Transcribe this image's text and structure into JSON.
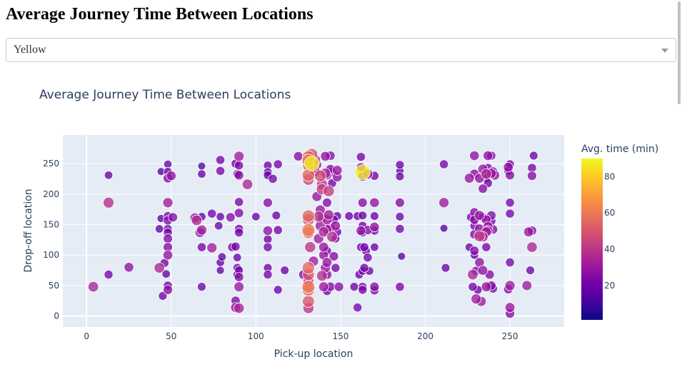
{
  "page": {
    "heading": "Average Journey Time Between Locations"
  },
  "dropdown": {
    "selected": "Yellow"
  },
  "chart_data": {
    "type": "scatter",
    "title": "Average Journey Time Between Locations",
    "xlabel": "Pick-up location",
    "ylabel": "Drop-off location",
    "xlim": [
      -14,
      282
    ],
    "ylim": [
      -18,
      297
    ],
    "xticks": [
      0,
      50,
      100,
      150,
      200,
      250
    ],
    "yticks": [
      0,
      50,
      100,
      150,
      200,
      250
    ],
    "colorbar": {
      "title": "Avg. time (min)",
      "range": [
        1,
        90
      ],
      "ticks": [
        20,
        40,
        60,
        80
      ]
    },
    "colorscale": [
      "#0d0887",
      "#46039f",
      "#7201a8",
      "#9c179e",
      "#bd3786",
      "#d8576b",
      "#ed7953",
      "#fb9f3a",
      "#fdca26",
      "#f0f921"
    ],
    "grid": true,
    "background": "#e5ecf6",
    "points": [
      [
        4,
        48,
        35
      ],
      [
        13,
        186,
        38
      ],
      [
        13,
        231,
        18
      ],
      [
        13,
        68,
        22
      ],
      [
        25,
        80,
        28
      ],
      [
        43,
        79,
        35
      ],
      [
        43,
        143,
        18
      ],
      [
        44,
        160,
        16
      ],
      [
        44,
        237,
        15
      ],
      [
        45,
        33,
        20
      ],
      [
        46,
        87,
        22
      ],
      [
        47,
        69,
        18
      ],
      [
        48,
        249,
        17
      ],
      [
        48,
        237,
        18
      ],
      [
        48,
        226,
        25
      ],
      [
        48,
        186,
        32
      ],
      [
        48,
        164,
        22
      ],
      [
        48,
        157,
        25
      ],
      [
        48,
        143,
        20
      ],
      [
        48,
        137,
        22
      ],
      [
        48,
        127,
        25
      ],
      [
        48,
        113,
        25
      ],
      [
        48,
        100,
        28
      ],
      [
        48,
        50,
        22
      ],
      [
        48,
        43,
        26
      ],
      [
        50,
        230,
        28
      ],
      [
        51,
        162,
        25
      ],
      [
        64,
        161,
        30
      ],
      [
        65,
        157,
        36
      ],
      [
        67,
        137,
        30
      ],
      [
        68,
        141,
        32
      ],
      [
        68,
        113,
        22
      ],
      [
        68,
        163,
        18
      ],
      [
        68,
        246,
        15
      ],
      [
        68,
        233,
        18
      ],
      [
        68,
        48,
        20
      ],
      [
        74,
        168,
        22
      ],
      [
        74,
        112,
        32
      ],
      [
        78,
        148,
        18
      ],
      [
        79,
        163,
        18
      ],
      [
        79,
        238,
        22
      ],
      [
        79,
        256,
        22
      ],
      [
        79,
        75,
        16
      ],
      [
        79,
        88,
        18
      ],
      [
        80,
        97,
        18
      ],
      [
        85,
        162,
        25
      ],
      [
        86,
        113,
        22
      ],
      [
        88,
        250,
        22
      ],
      [
        88,
        114,
        22
      ],
      [
        88,
        25,
        24
      ],
      [
        88,
        14,
        30
      ],
      [
        89,
        79,
        20
      ],
      [
        89,
        68,
        20
      ],
      [
        89,
        233,
        20
      ],
      [
        89,
        96,
        18
      ],
      [
        90,
        262,
        32
      ],
      [
        90,
        247,
        22
      ],
      [
        90,
        231,
        26
      ],
      [
        90,
        187,
        22
      ],
      [
        90,
        169,
        25
      ],
      [
        90,
        143,
        22
      ],
      [
        90,
        137,
        22
      ],
      [
        90,
        75,
        20
      ],
      [
        90,
        64,
        25
      ],
      [
        90,
        48,
        30
      ],
      [
        90,
        13,
        34
      ],
      [
        95,
        216,
        35
      ],
      [
        100,
        163,
        18
      ],
      [
        107,
        247,
        20
      ],
      [
        107,
        236,
        20
      ],
      [
        107,
        231,
        20
      ],
      [
        107,
        186,
        25
      ],
      [
        107,
        140,
        28
      ],
      [
        107,
        126,
        20
      ],
      [
        107,
        113,
        22
      ],
      [
        107,
        79,
        20
      ],
      [
        107,
        68,
        22
      ],
      [
        110,
        225,
        22
      ],
      [
        112,
        165,
        20
      ],
      [
        113,
        249,
        22
      ],
      [
        113,
        141,
        22
      ],
      [
        113,
        43,
        20
      ],
      [
        117,
        75,
        20
      ],
      [
        125,
        262,
        25
      ],
      [
        128,
        68,
        25
      ],
      [
        131,
        261,
        55
      ],
      [
        131,
        255,
        60
      ],
      [
        131,
        247,
        42
      ],
      [
        131,
        231,
        55
      ],
      [
        131,
        224,
        45
      ],
      [
        131,
        164,
        55
      ],
      [
        131,
        158,
        48
      ],
      [
        131,
        141,
        62
      ],
      [
        131,
        137,
        50
      ],
      [
        131,
        79,
        55
      ],
      [
        131,
        68,
        48
      ],
      [
        131,
        57,
        38
      ],
      [
        131,
        48,
        60
      ],
      [
        131,
        43,
        55
      ],
      [
        131,
        24,
        50
      ],
      [
        131,
        13,
        40
      ],
      [
        132,
        113,
        40
      ],
      [
        133,
        265,
        50
      ],
      [
        133,
        250,
        88
      ],
      [
        133,
        262,
        28
      ],
      [
        134,
        90,
        32
      ],
      [
        135,
        256,
        35
      ],
      [
        135,
        237,
        32
      ],
      [
        136,
        248,
        25
      ],
      [
        136,
        196,
        30
      ],
      [
        137,
        127,
        32
      ],
      [
        137,
        163,
        38
      ],
      [
        138,
        174,
        30
      ],
      [
        138,
        148,
        32
      ],
      [
        138,
        230,
        48
      ],
      [
        139,
        161,
        28
      ],
      [
        139,
        216,
        40
      ],
      [
        139,
        208,
        42
      ],
      [
        139,
        66,
        38
      ],
      [
        140,
        113,
        30
      ],
      [
        140,
        138,
        35
      ],
      [
        140,
        100,
        28
      ],
      [
        140,
        48,
        30
      ],
      [
        141,
        234,
        35
      ],
      [
        141,
        262,
        28
      ],
      [
        141,
        79,
        30
      ],
      [
        142,
        231,
        25
      ],
      [
        142,
        186,
        25
      ],
      [
        142,
        158,
        32
      ],
      [
        142,
        142,
        30
      ],
      [
        142,
        107,
        20
      ],
      [
        142,
        68,
        28
      ],
      [
        142,
        41,
        22
      ],
      [
        142,
        88,
        30
      ],
      [
        143,
        166,
        32
      ],
      [
        143,
        205,
        42
      ],
      [
        144,
        241,
        25
      ],
      [
        144,
        263,
        25
      ],
      [
        144,
        144,
        25
      ],
      [
        144,
        48,
        25
      ],
      [
        145,
        236,
        22
      ],
      [
        145,
        218,
        22
      ],
      [
        145,
        130,
        38
      ],
      [
        146,
        158,
        22
      ],
      [
        146,
        98,
        25
      ],
      [
        147,
        148,
        30
      ],
      [
        147,
        127,
        20
      ],
      [
        147,
        79,
        22
      ],
      [
        148,
        228,
        28
      ],
      [
        148,
        239,
        30
      ],
      [
        148,
        164,
        20
      ],
      [
        148,
        138,
        22
      ],
      [
        149,
        48,
        26
      ],
      [
        155,
        164,
        20
      ],
      [
        158,
        48,
        20
      ],
      [
        160,
        164,
        20
      ],
      [
        160,
        14,
        22
      ],
      [
        161,
        68,
        20
      ],
      [
        162,
        140,
        28
      ],
      [
        162,
        113,
        20
      ],
      [
        162,
        244,
        22
      ],
      [
        162,
        261,
        22
      ],
      [
        163,
        236,
        88
      ],
      [
        163,
        229,
        25
      ],
      [
        163,
        186,
        25
      ],
      [
        163,
        165,
        20
      ],
      [
        163,
        148,
        22
      ],
      [
        163,
        137,
        20
      ],
      [
        163,
        74,
        20
      ],
      [
        163,
        48,
        22
      ],
      [
        163,
        43,
        22
      ],
      [
        164,
        79,
        22
      ],
      [
        164,
        113,
        22
      ],
      [
        165,
        107,
        20
      ],
      [
        166,
        233,
        32
      ],
      [
        166,
        141,
        25
      ],
      [
        166,
        96,
        22
      ],
      [
        167,
        74,
        20
      ],
      [
        170,
        230,
        22
      ],
      [
        170,
        186,
        28
      ],
      [
        170,
        164,
        20
      ],
      [
        170,
        146,
        28
      ],
      [
        170,
        140,
        22
      ],
      [
        170,
        48,
        26
      ],
      [
        170,
        42,
        22
      ],
      [
        170,
        113,
        18
      ],
      [
        185,
        248,
        20
      ],
      [
        185,
        238,
        16
      ],
      [
        185,
        229,
        20
      ],
      [
        185,
        186,
        25
      ],
      [
        185,
        163,
        20
      ],
      [
        185,
        143,
        22
      ],
      [
        185,
        48,
        22
      ],
      [
        186,
        98,
        15
      ],
      [
        211,
        249,
        22
      ],
      [
        211,
        186,
        32
      ],
      [
        211,
        144,
        15
      ],
      [
        212,
        79,
        20
      ],
      [
        226,
        113,
        18
      ],
      [
        226,
        226,
        30
      ],
      [
        227,
        162,
        22
      ],
      [
        228,
        68,
        35
      ],
      [
        228,
        48,
        22
      ],
      [
        229,
        263,
        28
      ],
      [
        229,
        233,
        28
      ],
      [
        229,
        170,
        25
      ],
      [
        229,
        158,
        25
      ],
      [
        229,
        148,
        22
      ],
      [
        229,
        134,
        25
      ],
      [
        229,
        107,
        25
      ],
      [
        229,
        100,
        18
      ],
      [
        230,
        74,
        25
      ],
      [
        230,
        28,
        32
      ],
      [
        231,
        43,
        20
      ],
      [
        232,
        226,
        28
      ],
      [
        232,
        165,
        30
      ],
      [
        232,
        143,
        28
      ],
      [
        232,
        131,
        40
      ],
      [
        232,
        88,
        28
      ],
      [
        233,
        24,
        30
      ],
      [
        234,
        241,
        30
      ],
      [
        234,
        209,
        25
      ],
      [
        234,
        162,
        22
      ],
      [
        234,
        130,
        35
      ],
      [
        234,
        75,
        28
      ],
      [
        236,
        233,
        35
      ],
      [
        236,
        226,
        22
      ],
      [
        236,
        158,
        28
      ],
      [
        236,
        138,
        32
      ],
      [
        236,
        113,
        22
      ],
      [
        236,
        48,
        30
      ],
      [
        237,
        263,
        28
      ],
      [
        237,
        243,
        22
      ],
      [
        237,
        218,
        22
      ],
      [
        237,
        147,
        28
      ],
      [
        237,
        140,
        30
      ],
      [
        238,
        68,
        25
      ],
      [
        238,
        48,
        22
      ],
      [
        239,
        263,
        22
      ],
      [
        239,
        234,
        30
      ],
      [
        239,
        165,
        25
      ],
      [
        239,
        156,
        22
      ],
      [
        239,
        50,
        25
      ],
      [
        240,
        237,
        25
      ],
      [
        240,
        142,
        25
      ],
      [
        240,
        45,
        22
      ],
      [
        241,
        231,
        28
      ],
      [
        249,
        44,
        25
      ],
      [
        249,
        244,
        28
      ],
      [
        249,
        238,
        20
      ],
      [
        250,
        14,
        30
      ],
      [
        250,
        88,
        22
      ],
      [
        250,
        50,
        32
      ],
      [
        250,
        186,
        22
      ],
      [
        250,
        168,
        22
      ],
      [
        250,
        4,
        25
      ],
      [
        250,
        231,
        25
      ],
      [
        250,
        249,
        20
      ],
      [
        260,
        50,
        30
      ],
      [
        261,
        138,
        30
      ],
      [
        262,
        75,
        20
      ],
      [
        263,
        243,
        22
      ],
      [
        263,
        230,
        25
      ],
      [
        263,
        113,
        35
      ],
      [
        263,
        140,
        25
      ],
      [
        264,
        263,
        20
      ]
    ]
  }
}
